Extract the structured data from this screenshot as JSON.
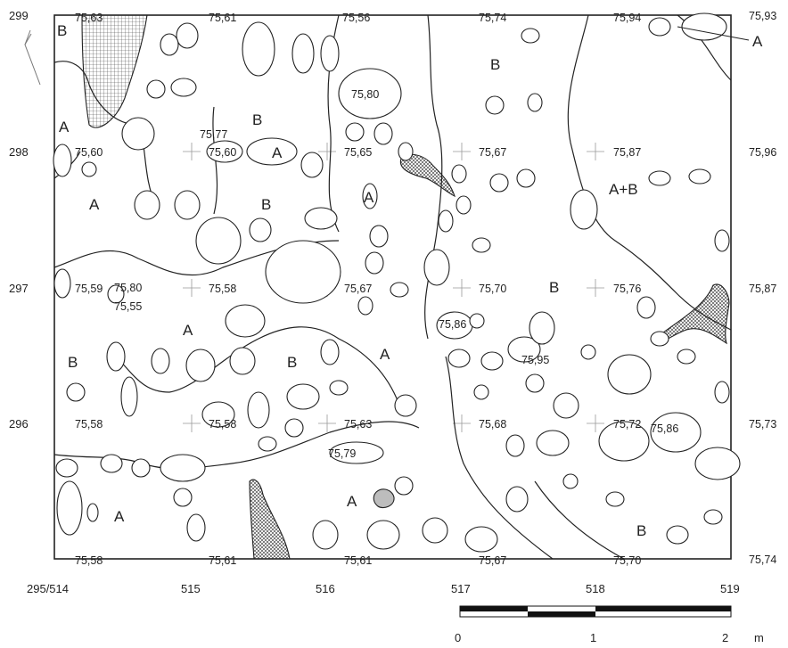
{
  "row_labels": {
    "left": [
      "299",
      "298",
      "297",
      "296"
    ],
    "right": [
      "75,93",
      "75,96",
      "75,87",
      "75,73",
      "75,74"
    ]
  },
  "column_labels": [
    "295/514",
    "515",
    "516",
    "517",
    "518",
    "519"
  ],
  "elevations": [
    "75,63",
    "75,61",
    "75,56",
    "75,74",
    "75,94",
    "75,80",
    "75,77",
    "75,60",
    "75,60",
    "75,65",
    "75,67",
    "75,87",
    "75,59",
    "75,80",
    "75,55",
    "75,58",
    "75,67",
    "75,70",
    "75,76",
    "75,86",
    "75,95",
    "75,58",
    "75,58",
    "75,63",
    "75,68",
    "75,72",
    "75,86",
    "75,79",
    "75,58",
    "75,61",
    "75,61",
    "75,67",
    "75,70"
  ],
  "zones": [
    "B",
    "A",
    "A",
    "A",
    "B",
    "A",
    "B",
    "A",
    "B",
    "A+B",
    "A",
    "B",
    "A",
    "B",
    "B",
    "A",
    "A",
    "B",
    "A"
  ],
  "scale_bar": {
    "labels": [
      "0",
      "1",
      "2"
    ],
    "unit": "m"
  },
  "north_arrow": "north-arrow-icon"
}
